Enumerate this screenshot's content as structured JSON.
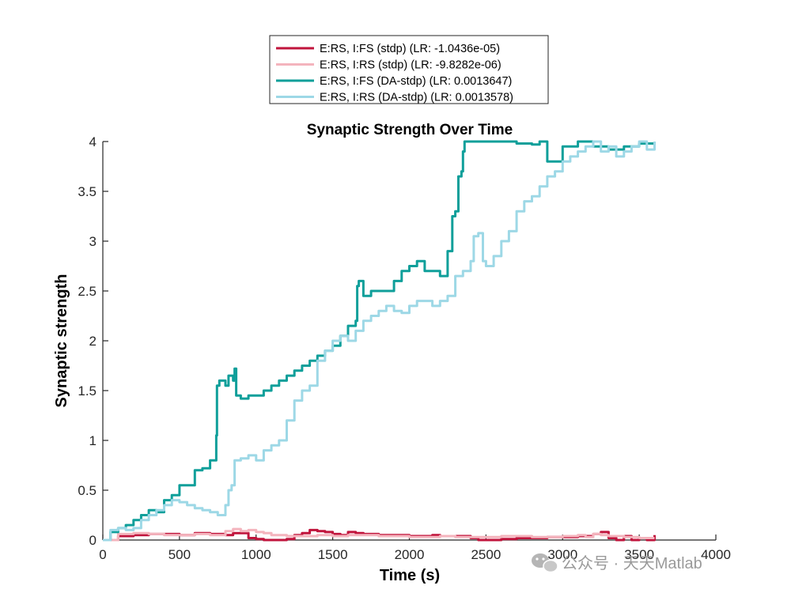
{
  "chart_data": {
    "type": "line",
    "title": "Synaptic Strength Over Time",
    "xlabel": "Time (s)",
    "ylabel": "Synaptic strength",
    "xlim": [
      0,
      4000
    ],
    "ylim": [
      0,
      4
    ],
    "xticks": [
      0,
      500,
      1000,
      1500,
      2000,
      2500,
      3000,
      3500,
      4000
    ],
    "yticks": [
      0,
      0.5,
      1,
      1.5,
      2,
      2.5,
      3,
      3.5,
      4
    ],
    "xtick_labels": [
      "0",
      "500",
      "1000",
      "1500",
      "2000",
      "2500",
      "3000",
      "3500",
      "4000"
    ],
    "ytick_labels": [
      "0",
      "0.5",
      "1",
      "1.5",
      "2",
      "2.5",
      "3",
      "3.5",
      "4"
    ],
    "grid": false,
    "legend_position": "top-center, outside plot",
    "series": [
      {
        "name": "E:RS, I:FS (stdp) (LR: -1.0436e-05)",
        "color": "#c0143c",
        "x": [
          0,
          100,
          200,
          300,
          400,
          500,
          600,
          700,
          800,
          850,
          950,
          1000,
          1050,
          1100,
          1150,
          1200,
          1250,
          1300,
          1350,
          1400,
          1450,
          1500,
          1550,
          1600,
          1650,
          1700,
          1800,
          1900,
          2000,
          2100,
          2150,
          2200,
          2300,
          2400,
          2450,
          2500,
          2600,
          2700,
          2800,
          2900,
          3000,
          3100,
          3200,
          3250,
          3300,
          3350,
          3400,
          3450,
          3500,
          3550,
          3600
        ],
        "y": [
          0,
          0.04,
          0.05,
          0.06,
          0.06,
          0.05,
          0.07,
          0.06,
          0.05,
          0.07,
          0.02,
          0.01,
          0.0,
          0.0,
          0.0,
          0.01,
          0.05,
          0.07,
          0.1,
          0.09,
          0.08,
          0.06,
          0.05,
          0.08,
          0.07,
          0.06,
          0.05,
          0.05,
          0.04,
          0.04,
          0.05,
          0.04,
          0.04,
          0.02,
          0.0,
          0.0,
          0.01,
          0.02,
          0.02,
          0.03,
          0.03,
          0.04,
          0.06,
          0.08,
          0.02,
          0.0,
          0.04,
          0.0,
          0.02,
          0.0,
          0.05
        ]
      },
      {
        "name": "E:RS, I:RS (stdp) (LR: -9.8282e-06)",
        "color": "#f4b4bd",
        "x": [
          0,
          100,
          200,
          300,
          400,
          500,
          600,
          700,
          800,
          850,
          900,
          950,
          1000,
          1050,
          1100,
          1200,
          1300,
          1400,
          1500,
          1600,
          1700,
          1800,
          1900,
          2000,
          2100,
          2200,
          2300,
          2400,
          2500,
          2600,
          2700,
          2800,
          2900,
          3000,
          3100,
          3150,
          3200,
          3250,
          3300,
          3400,
          3500,
          3600
        ],
        "y": [
          0,
          0.06,
          0.07,
          0.06,
          0.05,
          0.05,
          0.06,
          0.05,
          0.09,
          0.11,
          0.09,
          0.1,
          0.08,
          0.07,
          0.05,
          0.04,
          0.04,
          0.05,
          0.04,
          0.05,
          0.05,
          0.04,
          0.04,
          0.03,
          0.03,
          0.04,
          0.03,
          0.03,
          0.03,
          0.04,
          0.04,
          0.03,
          0.03,
          0.04,
          0.05,
          0.03,
          0.06,
          0.05,
          0.04,
          0.03,
          0.02,
          0.02
        ]
      },
      {
        "name": "E:RS, I:FS (DA-stdp) (LR: 0.0013647)",
        "color": "#0f9f9a",
        "x": [
          0,
          50,
          100,
          150,
          200,
          250,
          300,
          350,
          400,
          450,
          500,
          550,
          600,
          650,
          700,
          740,
          745,
          760,
          800,
          820,
          850,
          860,
          870,
          900,
          950,
          1000,
          1050,
          1100,
          1150,
          1200,
          1250,
          1300,
          1350,
          1400,
          1450,
          1500,
          1550,
          1600,
          1650,
          1660,
          1670,
          1700,
          1750,
          1800,
          1850,
          1900,
          1950,
          2000,
          2050,
          2100,
          2150,
          2200,
          2250,
          2280,
          2300,
          2320,
          2340,
          2350,
          2360,
          2400,
          2500,
          2600,
          2700,
          2800,
          2850,
          2900,
          3000,
          3100,
          3200,
          3300,
          3400,
          3500,
          3600
        ],
        "y": [
          0,
          0.08,
          0.12,
          0.15,
          0.2,
          0.25,
          0.3,
          0.28,
          0.4,
          0.45,
          0.55,
          0.55,
          0.7,
          0.72,
          0.8,
          1.05,
          1.55,
          1.6,
          1.55,
          1.65,
          1.6,
          1.72,
          1.45,
          1.42,
          1.45,
          1.45,
          1.5,
          1.55,
          1.6,
          1.65,
          1.7,
          1.75,
          1.8,
          1.85,
          1.9,
          1.95,
          2.05,
          2.15,
          2.2,
          2.55,
          2.6,
          2.45,
          2.5,
          2.5,
          2.5,
          2.6,
          2.7,
          2.75,
          2.8,
          2.7,
          2.7,
          2.65,
          2.9,
          3.25,
          3.3,
          3.65,
          3.7,
          3.9,
          4.0,
          4.0,
          4.0,
          4.0,
          3.98,
          3.97,
          4.0,
          3.8,
          3.95,
          4.0,
          3.95,
          3.92,
          3.95,
          3.98,
          4.0
        ]
      },
      {
        "name": "E:RS, I:RS (DA-stdp) (LR: 0.0013578)",
        "color": "#9dd8e6",
        "x": [
          0,
          50,
          100,
          150,
          200,
          250,
          300,
          350,
          400,
          450,
          500,
          550,
          600,
          650,
          700,
          750,
          800,
          820,
          840,
          860,
          900,
          950,
          1000,
          1050,
          1100,
          1150,
          1200,
          1250,
          1300,
          1350,
          1400,
          1450,
          1500,
          1550,
          1600,
          1650,
          1700,
          1750,
          1800,
          1850,
          1900,
          1950,
          2000,
          2050,
          2100,
          2150,
          2200,
          2250,
          2300,
          2350,
          2400,
          2420,
          2450,
          2480,
          2500,
          2550,
          2600,
          2650,
          2700,
          2750,
          2800,
          2850,
          2900,
          2950,
          3000,
          3050,
          3100,
          3150,
          3200,
          3250,
          3300,
          3350,
          3400,
          3450,
          3500,
          3550,
          3600
        ],
        "y": [
          0,
          0.1,
          0.12,
          0.1,
          0.12,
          0.2,
          0.25,
          0.3,
          0.35,
          0.4,
          0.38,
          0.35,
          0.32,
          0.3,
          0.28,
          0.25,
          0.35,
          0.5,
          0.55,
          0.8,
          0.82,
          0.85,
          0.8,
          0.9,
          0.95,
          1.0,
          1.2,
          1.4,
          1.5,
          1.55,
          1.8,
          1.9,
          2.0,
          2.05,
          2.0,
          2.1,
          2.2,
          2.25,
          2.3,
          2.35,
          2.3,
          2.28,
          2.35,
          2.4,
          2.4,
          2.35,
          2.4,
          2.45,
          2.65,
          2.7,
          2.8,
          3.05,
          3.08,
          2.8,
          2.75,
          2.85,
          3.0,
          3.1,
          3.3,
          3.4,
          3.45,
          3.55,
          3.65,
          3.7,
          3.8,
          3.85,
          3.9,
          3.95,
          4.0,
          3.9,
          3.95,
          3.85,
          3.9,
          3.95,
          4.0,
          3.92,
          4.0
        ]
      }
    ]
  },
  "watermark": {
    "text": "公众号 · 天天Matlab",
    "icon": "wechat-icon"
  }
}
